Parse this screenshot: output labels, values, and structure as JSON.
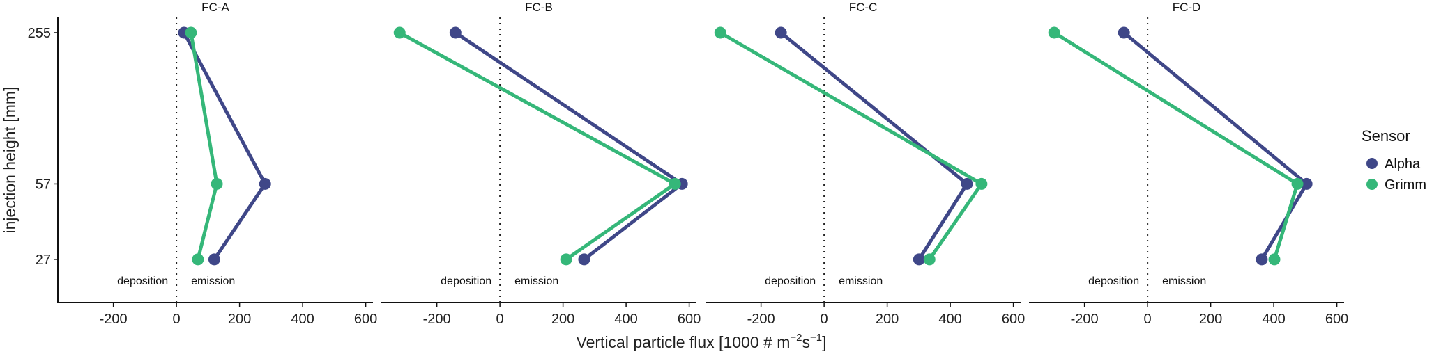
{
  "chart_data": {
    "type": "line",
    "xlabel_main": "Vertical particle flux [1000 # m",
    "xlabel_sup1": "−2",
    "xlabel_mid": "s",
    "xlabel_sup2": "−1",
    "xlabel_end": "]",
    "ylabel": "injection height [mm]",
    "y_scale": "log10",
    "y_ticks": [
      255,
      57,
      27
    ],
    "ylim": [
      17.6,
      296.7
    ],
    "x_ticks": [
      -200,
      0,
      200,
      400,
      600
    ],
    "xlim": [
      -376,
      623
    ],
    "reference_line_x": 0,
    "annotations": {
      "left": "deposition",
      "right": "emission"
    },
    "legend": {
      "title": "Sensor",
      "position": "right",
      "entries": [
        {
          "name": "Alpha",
          "color": "#3F4788"
        },
        {
          "name": "Grimm",
          "color": "#35B779"
        }
      ]
    },
    "facets": [
      {
        "title": "FC-A",
        "series": [
          {
            "name": "Alpha",
            "points": [
              {
                "y": 255,
                "x": 24
              },
              {
                "y": 57,
                "x": 281
              },
              {
                "y": 27,
                "x": 120
              }
            ]
          },
          {
            "name": "Grimm",
            "points": [
              {
                "y": 255,
                "x": 46
              },
              {
                "y": 57,
                "x": 128
              },
              {
                "y": 27,
                "x": 68
              }
            ]
          }
        ]
      },
      {
        "title": "FC-B",
        "series": [
          {
            "name": "Alpha",
            "points": [
              {
                "y": 255,
                "x": -141
              },
              {
                "y": 57,
                "x": 577
              },
              {
                "y": 27,
                "x": 267
              }
            ]
          },
          {
            "name": "Grimm",
            "points": [
              {
                "y": 255,
                "x": -318
              },
              {
                "y": 57,
                "x": 555
              },
              {
                "y": 27,
                "x": 210
              }
            ]
          }
        ]
      },
      {
        "title": "FC-C",
        "series": [
          {
            "name": "Alpha",
            "points": [
              {
                "y": 255,
                "x": -137
              },
              {
                "y": 57,
                "x": 453
              },
              {
                "y": 27,
                "x": 301
              }
            ]
          },
          {
            "name": "Grimm",
            "points": [
              {
                "y": 255,
                "x": -329
              },
              {
                "y": 57,
                "x": 499
              },
              {
                "y": 27,
                "x": 334
              }
            ]
          }
        ]
      },
      {
        "title": "FC-D",
        "series": [
          {
            "name": "Alpha",
            "points": [
              {
                "y": 255,
                "x": -75
              },
              {
                "y": 57,
                "x": 504
              },
              {
                "y": 27,
                "x": 362
              }
            ]
          },
          {
            "name": "Grimm",
            "points": [
              {
                "y": 255,
                "x": -296
              },
              {
                "y": 57,
                "x": 475
              },
              {
                "y": 27,
                "x": 402
              }
            ]
          }
        ]
      }
    ]
  }
}
